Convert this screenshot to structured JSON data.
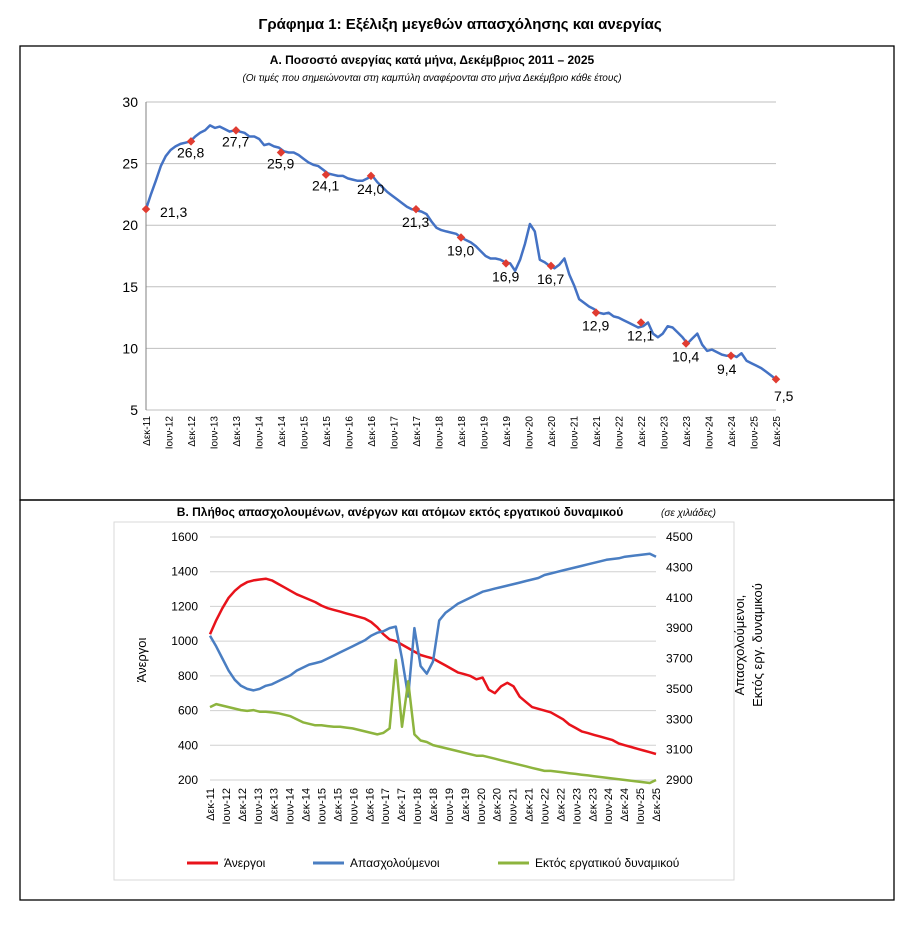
{
  "figure": {
    "title": "Γράφημα 1: Εξέλιξη μεγεθών απασχόλησης και ανεργίας"
  },
  "colors": {
    "line_a": "#4472C4",
    "markers_a": "#E03C31",
    "unemployed": "#E8131B",
    "employed": "#4A7EC2",
    "outside": "#8DB43E",
    "grid": "#BFBFBF",
    "frame": "#000000"
  },
  "chart_data": [
    {
      "type": "line",
      "title": "Α. Ποσοστό ανεργίας κατά μήνα, Δεκέμβριος 2011 – 2025",
      "subtitle": "(Οι τιμές που σημειώνονται στη καμπύλη αναφέρονται στο μήνα Δεκέμβριο κάθε έτους)",
      "ylim": [
        5,
        30
      ],
      "yticks": [
        5,
        10,
        15,
        20,
        25,
        30
      ],
      "grid": true,
      "x_tick_labels": [
        "Δεκ-11",
        "Ιουν-12",
        "Δεκ-12",
        "Ιουν-13",
        "Δεκ-13",
        "Ιουν-14",
        "Δεκ-14",
        "Ιουν-15",
        "Δεκ-15",
        "Ιουν-16",
        "Δεκ-16",
        "Ιουν-17",
        "Δεκ-17",
        "Ιουν-18",
        "Δεκ-18",
        "Ιουν-19",
        "Δεκ-19",
        "Ιουν-20",
        "Δεκ-20",
        "Ιουν-21",
        "Δεκ-21",
        "Ιουν-22",
        "Δεκ-22",
        "Ιουν-23",
        "Δεκ-23",
        "Ιουν-24",
        "Δεκ-24",
        "Ιουν-25",
        "Δεκ-25"
      ],
      "series": [
        {
          "values": [
            21.3,
            22.5,
            23.6,
            24.8,
            25.6,
            26.1,
            26.4,
            26.6,
            26.7,
            26.8,
            27.2,
            27.5,
            27.7,
            28.1,
            27.9,
            28.0,
            27.8,
            27.6,
            27.7,
            27.6,
            27.5,
            27.2,
            27.2,
            27.0,
            26.5,
            26.6,
            26.4,
            26.3,
            26.0,
            25.9,
            25.9,
            25.7,
            25.4,
            25.1,
            24.9,
            24.8,
            24.5,
            24.2,
            24.1,
            24.0,
            24.0,
            23.8,
            23.7,
            23.6,
            23.6,
            23.8,
            24.0,
            23.5,
            23.1,
            22.7,
            22.4,
            22.1,
            21.8,
            21.5,
            21.3,
            21.2,
            21.1,
            20.9,
            20.3,
            19.8,
            19.6,
            19.5,
            19.4,
            19.3,
            19.0,
            18.8,
            18.6,
            18.3,
            17.9,
            17.5,
            17.3,
            17.3,
            17.2,
            17.0,
            16.9,
            16.3,
            17.2,
            18.5,
            20.1,
            19.5,
            17.2,
            17.0,
            16.7,
            16.5,
            16.8,
            17.3,
            16.0,
            15.1,
            14.0,
            13.7,
            13.4,
            13.2,
            12.9,
            12.8,
            12.9,
            12.6,
            12.5,
            12.3,
            12.1,
            11.9,
            11.7,
            11.8,
            12.1,
            11.2,
            10.9,
            11.2,
            11.8,
            11.7,
            11.3,
            10.9,
            10.4,
            10.8,
            11.2,
            10.3,
            9.8,
            9.9,
            9.7,
            9.5,
            9.4,
            9.5,
            9.3,
            9.6,
            9.0,
            8.8,
            8.6,
            8.4,
            8.1,
            7.8,
            7.5
          ]
        }
      ],
      "december_markers": [
        {
          "label": "Δεκ-11",
          "value": 21.3,
          "text": "21,3"
        },
        {
          "label": "Δεκ-12",
          "value": 26.8,
          "text": "26,8"
        },
        {
          "label": "Δεκ-13",
          "value": 27.7,
          "text": "27,7"
        },
        {
          "label": "Δεκ-14",
          "value": 25.9,
          "text": "25,9"
        },
        {
          "label": "Δεκ-15",
          "value": 24.1,
          "text": "24,1"
        },
        {
          "label": "Δεκ-16",
          "value": 24.0,
          "text": "24,0"
        },
        {
          "label": "Δεκ-17",
          "value": 21.3,
          "text": "21,3"
        },
        {
          "label": "Δεκ-18",
          "value": 19.0,
          "text": "19,0"
        },
        {
          "label": "Δεκ-19",
          "value": 16.9,
          "text": "16,9"
        },
        {
          "label": "Δεκ-20",
          "value": 16.7,
          "text": "16,7"
        },
        {
          "label": "Δεκ-21",
          "value": 12.9,
          "text": "12,9"
        },
        {
          "label": "Δεκ-22",
          "value": 12.1,
          "text": "12,1"
        },
        {
          "label": "Δεκ-23",
          "value": 10.4,
          "text": "10,4"
        },
        {
          "label": "Δεκ-24",
          "value": 9.4,
          "text": "9,4"
        },
        {
          "label": "Δεκ-25",
          "value": 7.5,
          "text": "7,5"
        }
      ]
    },
    {
      "type": "line",
      "title": "Β. Πλήθος απασχολουμένων, ανέργων και ατόμων εκτός εργατικού δυναμικού",
      "title_note": "(σε χιλιάδες)",
      "ylabel": "Άνεργοι",
      "y2label_line1": "Απασχολούμενοι,",
      "y2label_line2": "Εκτός εργ. δυναμικού",
      "ylim": [
        200,
        1600
      ],
      "yticks": [
        200,
        400,
        600,
        800,
        1000,
        1200,
        1400,
        1600
      ],
      "y2lim": [
        2900,
        4500
      ],
      "y2ticks": [
        2900,
        3100,
        3300,
        3500,
        3700,
        3900,
        4100,
        4300,
        4500
      ],
      "grid": true,
      "legend": "bottom",
      "x_tick_labels": [
        "Δεκ-11",
        "Ιουν-12",
        "Δεκ-12",
        "Ιουν-13",
        "Δεκ-13",
        "Ιουν-14",
        "Δεκ-14",
        "Ιουν-15",
        "Δεκ-15",
        "Ιουν-16",
        "Δεκ-16",
        "Ιουν-17",
        "Δεκ-17",
        "Ιουν-18",
        "Δεκ-18",
        "Ιουν-19",
        "Δεκ-19",
        "Ιουν-20",
        "Δεκ-20",
        "Ιουν-21",
        "Δεκ-21",
        "Ιουν-22",
        "Δεκ-22",
        "Ιουν-23",
        "Δεκ-23",
        "Ιουν-24",
        "Δεκ-24",
        "Ιουν-25",
        "Δεκ-25"
      ],
      "series": [
        {
          "name": "Άνεργοι",
          "axis": "left",
          "values": [
            1040,
            1120,
            1190,
            1250,
            1290,
            1320,
            1340,
            1350,
            1355,
            1360,
            1350,
            1330,
            1310,
            1290,
            1270,
            1255,
            1240,
            1225,
            1205,
            1190,
            1180,
            1170,
            1160,
            1150,
            1140,
            1130,
            1110,
            1080,
            1040,
            1010,
            1000,
            980,
            960,
            940,
            920,
            910,
            900,
            880,
            860,
            840,
            820,
            810,
            800,
            780,
            790,
            720,
            700,
            740,
            760,
            740,
            680,
            650,
            620,
            610,
            600,
            590,
            570,
            550,
            520,
            500,
            480,
            470,
            460,
            450,
            440,
            430,
            410,
            400,
            390,
            380,
            370,
            360,
            350
          ]
        },
        {
          "name": "Απασχολούμενοι",
          "axis": "right",
          "values": [
            3850,
            3780,
            3700,
            3620,
            3560,
            3520,
            3500,
            3490,
            3500,
            3520,
            3530,
            3550,
            3570,
            3590,
            3620,
            3640,
            3660,
            3670,
            3680,
            3700,
            3720,
            3740,
            3760,
            3780,
            3800,
            3820,
            3850,
            3870,
            3880,
            3900,
            3910,
            3700,
            3450,
            3900,
            3650,
            3600,
            3680,
            3950,
            4000,
            4030,
            4060,
            4080,
            4100,
            4120,
            4140,
            4150,
            4160,
            4170,
            4180,
            4190,
            4200,
            4210,
            4220,
            4230,
            4250,
            4260,
            4270,
            4280,
            4290,
            4300,
            4310,
            4320,
            4330,
            4340,
            4350,
            4355,
            4360,
            4370,
            4375,
            4380,
            4385,
            4390,
            4370
          ]
        },
        {
          "name": "Εκτός εργατικού δυναμικού",
          "axis": "right",
          "values": [
            3380,
            3400,
            3390,
            3380,
            3370,
            3360,
            3355,
            3360,
            3350,
            3350,
            3345,
            3340,
            3330,
            3320,
            3300,
            3280,
            3270,
            3260,
            3260,
            3255,
            3250,
            3250,
            3245,
            3240,
            3230,
            3220,
            3210,
            3200,
            3210,
            3240,
            3690,
            3250,
            3550,
            3200,
            3160,
            3150,
            3130,
            3120,
            3110,
            3100,
            3090,
            3080,
            3070,
            3060,
            3060,
            3050,
            3040,
            3030,
            3020,
            3010,
            3000,
            2990,
            2980,
            2970,
            2960,
            2960,
            2955,
            2950,
            2945,
            2940,
            2935,
            2930,
            2925,
            2920,
            2915,
            2910,
            2905,
            2900,
            2895,
            2890,
            2885,
            2880,
            2900
          ]
        }
      ]
    }
  ]
}
